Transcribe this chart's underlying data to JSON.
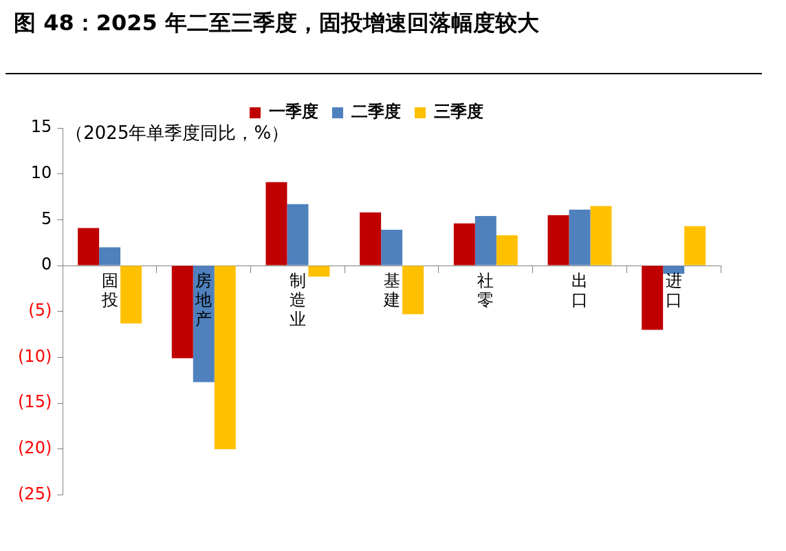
{
  "chart_data": {
    "type": "bar",
    "title": "图 48：2025 年二至三季度，固投增速回落幅度较大",
    "ylabel": "（2025年单季度同比，%）",
    "categories": [
      "固投",
      "房地产",
      "制造业",
      "基建",
      "社零",
      "出口",
      "进口"
    ],
    "series": [
      {
        "name": "一季度",
        "color": "#c00000",
        "values": [
          4.1,
          -10.1,
          9.1,
          5.8,
          4.6,
          5.5,
          -7.0
        ]
      },
      {
        "name": "二季度",
        "color": "#4f81bd",
        "values": [
          2.0,
          -12.7,
          6.7,
          3.9,
          5.4,
          6.1,
          -0.9
        ]
      },
      {
        "name": "三季度",
        "color": "#ffc000",
        "values": [
          -6.3,
          -20.0,
          -1.2,
          -5.3,
          3.3,
          6.5,
          4.3
        ]
      }
    ],
    "ylim": [
      -25,
      15
    ],
    "yticks": [
      {
        "value": -25,
        "label": "(25)"
      },
      {
        "value": -20,
        "label": "(20)"
      },
      {
        "value": -15,
        "label": "(15)"
      },
      {
        "value": -10,
        "label": "(10)"
      },
      {
        "value": -5,
        "label": "(5)"
      },
      0,
      5,
      10,
      15
    ],
    "grid": false,
    "legend": "top"
  }
}
